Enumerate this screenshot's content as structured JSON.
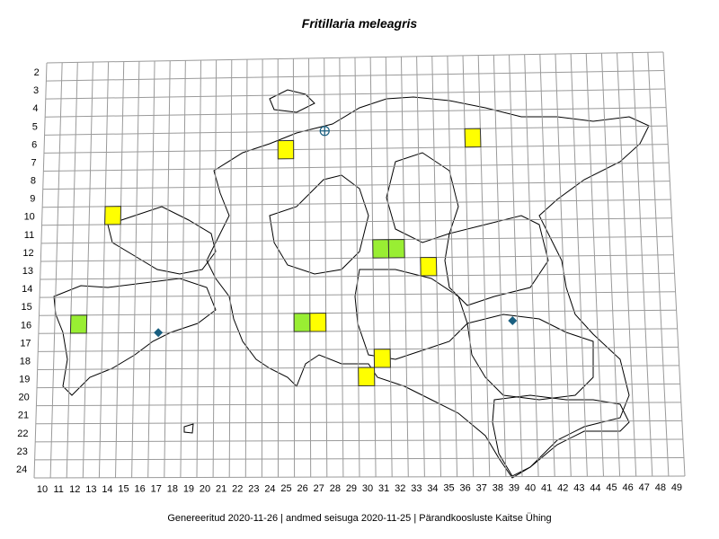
{
  "title": "Fritillaria meleagris",
  "footer": {
    "generated": "Genereeritud 2020-11-26",
    "data_state": "andmed seisuga 2020-11-25",
    "organization": "Pärandkoosluste Kaitse Ühing",
    "separator": "|"
  },
  "grid": {
    "row_labels": [
      "2",
      "3",
      "4",
      "5",
      "6",
      "7",
      "8",
      "9",
      "10",
      "11",
      "12",
      "13",
      "14",
      "15",
      "16",
      "17",
      "18",
      "19",
      "20",
      "21",
      "22",
      "23",
      "24"
    ],
    "col_labels": [
      "10",
      "11",
      "12",
      "13",
      "14",
      "15",
      "16",
      "17",
      "18",
      "19",
      "20",
      "21",
      "22",
      "23",
      "24",
      "25",
      "26",
      "27",
      "28",
      "29",
      "30",
      "31",
      "32",
      "33",
      "34",
      "35",
      "36",
      "37",
      "38",
      "39",
      "40",
      "41",
      "42",
      "43",
      "44",
      "45",
      "46",
      "47",
      "48",
      "49"
    ]
  },
  "legend_colors": {
    "yellow_cell": "#ffff00",
    "green_cell": "#99ee33",
    "marker": "#1a5f80"
  },
  "occurrences": [
    {
      "col": 25,
      "row": 6.5,
      "status": "yellow"
    },
    {
      "col": 37,
      "row": 6,
      "status": "yellow"
    },
    {
      "col": 14,
      "row": 10,
      "status": "yellow"
    },
    {
      "col": 31,
      "row": 12,
      "status": "green"
    },
    {
      "col": 32,
      "row": 12,
      "status": "green"
    },
    {
      "col": 34,
      "row": 13,
      "status": "yellow"
    },
    {
      "col": 12,
      "row": 16,
      "status": "green"
    },
    {
      "col": 26,
      "row": 16,
      "status": "green"
    },
    {
      "col": 27,
      "row": 16,
      "status": "yellow"
    },
    {
      "col": 31,
      "row": 18,
      "status": "yellow"
    },
    {
      "col": 30,
      "row": 19,
      "status": "yellow"
    }
  ],
  "point_markers": [
    {
      "col": 27.5,
      "row": 5.5,
      "symbol": "crosshair-circle"
    },
    {
      "col": 17,
      "row": 16.5,
      "symbol": "diamond"
    },
    {
      "col": 39.2,
      "row": 16,
      "symbol": "diamond"
    }
  ]
}
